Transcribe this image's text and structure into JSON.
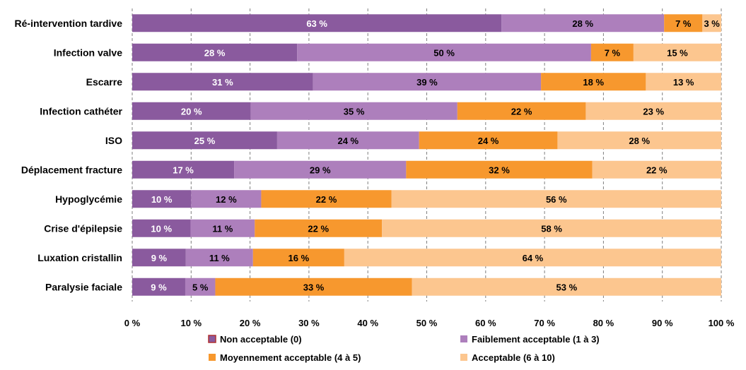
{
  "chart_data": {
    "type": "bar",
    "orientation": "horizontal",
    "stacked": true,
    "categories": [
      "Ré-intervention tardive",
      "Infection valve",
      "Escarre",
      "Infection cathéter",
      "ISO",
      "Déplacement fracture",
      "Hypoglycémie",
      "Crise d'épilepsie",
      "Luxation cristallin",
      "Paralysie faciale"
    ],
    "series": [
      {
        "name": "Non acceptable (0)",
        "color": "#8a5a9e",
        "label_color": "#ffffff",
        "values": [
          62.7,
          28.0,
          30.7,
          20.1,
          24.6,
          17.3,
          10.0,
          9.9,
          9.1,
          9.0
        ],
        "labels": [
          "63 %",
          "28 %",
          "31 %",
          "20 %",
          "25 %",
          "17 %",
          "10 %",
          "10 %",
          "9 %",
          "9 %"
        ]
      },
      {
        "name": "Faiblement acceptable (1 à 3)",
        "color": "#ad7fbc",
        "label_color": "#000000",
        "values": [
          27.6,
          49.9,
          38.7,
          35.1,
          24.1,
          29.2,
          11.9,
          10.9,
          11.4,
          5.1
        ],
        "labels": [
          "28 %",
          "50 %",
          "39 %",
          "35 %",
          "24 %",
          "29 %",
          "12 %",
          "11 %",
          "11 %",
          "5 %"
        ]
      },
      {
        "name": "Moyennement acceptable (4 à 5)",
        "color": "#f7982e",
        "label_color": "#000000",
        "values": [
          6.5,
          7.2,
          17.8,
          21.8,
          23.5,
          31.6,
          22.1,
          21.6,
          15.5,
          33.4
        ],
        "labels": [
          "7 %",
          "7 %",
          "18 %",
          "22 %",
          "24 %",
          "32 %",
          "22 %",
          "22 %",
          "16 %",
          "33 %"
        ]
      },
      {
        "name": "Acceptable (6 à 10)",
        "color": "#fcc68f",
        "label_color": "#000000",
        "values": [
          3.2,
          14.9,
          12.8,
          23.0,
          27.8,
          21.9,
          56.0,
          57.6,
          64.0,
          52.5
        ],
        "labels": [
          "3 %",
          "15 %",
          "13 %",
          "23 %",
          "28 %",
          "22 %",
          "56 %",
          "58 %",
          "64 %",
          "53 %"
        ]
      }
    ],
    "xlim": [
      0,
      100
    ],
    "xticks": [
      "0 %",
      "10 %",
      "20 %",
      "30 %",
      "40 %",
      "50 %",
      "60 %",
      "70 %",
      "80 %",
      "90 %",
      "100 %"
    ],
    "grid": "vertical dashed",
    "legend_position": "bottom",
    "xlabel": "",
    "ylabel": "",
    "title": ""
  }
}
